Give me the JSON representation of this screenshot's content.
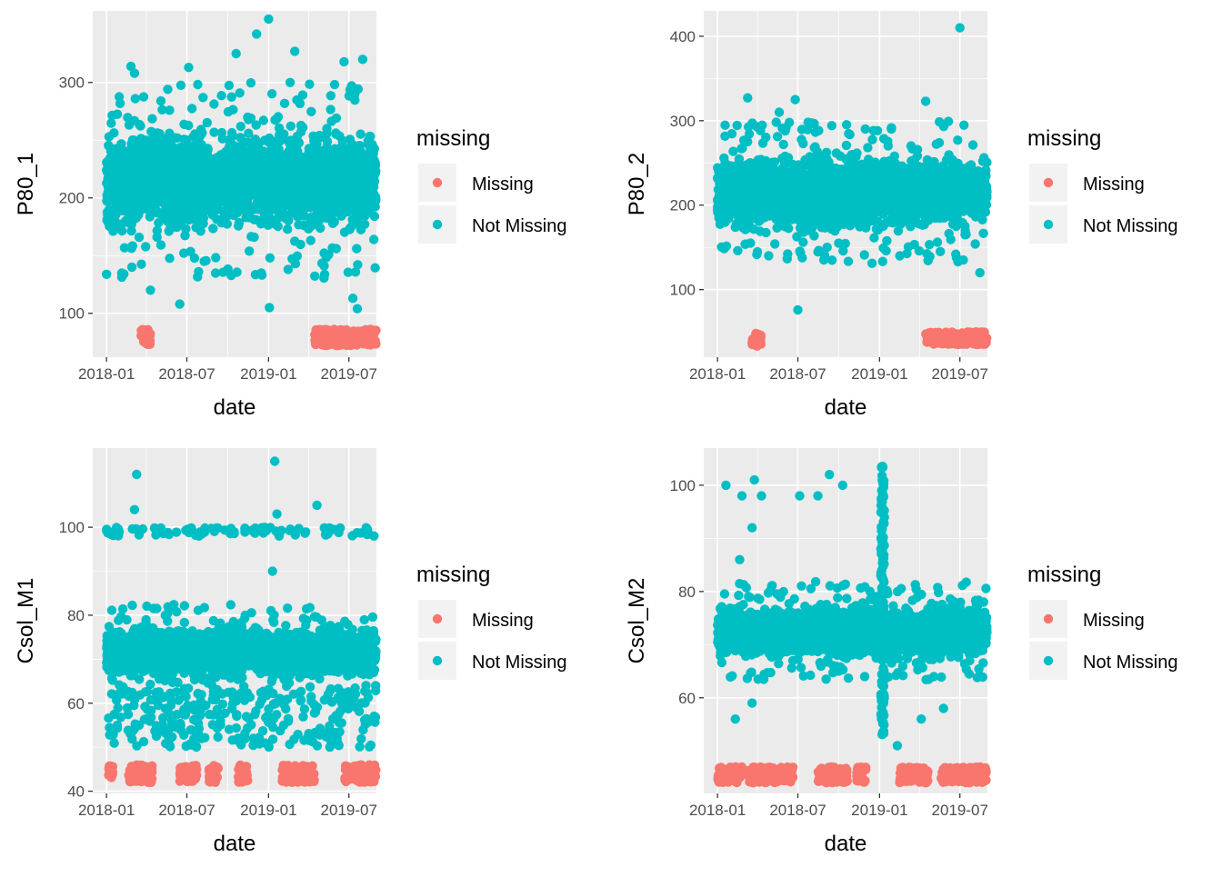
{
  "legend": {
    "title": "missing",
    "items": [
      {
        "label": "Missing",
        "color": "#F8766D"
      },
      {
        "label": "Not Missing",
        "color": "#00BFC4"
      }
    ]
  },
  "colors": {
    "panel_bg": "#EBEBEB",
    "grid_major": "#FFFFFF",
    "missing": "#F8766D",
    "not_missing": "#00BFC4"
  },
  "chart_data": [
    {
      "type": "scatter",
      "xlabel": "date",
      "ylabel": "P80_1",
      "x_tick_labels": [
        "2018-01",
        "2018-07",
        "2019-01",
        "2019-07"
      ],
      "y_tick_labels": [
        "100",
        "200",
        "300"
      ],
      "xlim": [
        "2017-12-01",
        "2019-09-01"
      ],
      "ylim": [
        62,
        362
      ],
      "y_ticks": [
        100,
        200,
        300
      ],
      "grid": true,
      "legend_position": "right",
      "series": [
        {
          "name": "Missing",
          "summary": "constant-like low values near 75–85, in early Mar–Apr 2018 and Apr–Aug 2019",
          "x_range": [
            "2018-03-20",
            "2018-04-10"
          ],
          "y_range": [
            72,
            86
          ],
          "x_range_2": [
            "2019-04-15",
            "2019-08-31"
          ],
          "y_range_2": [
            72,
            86
          ]
        },
        {
          "name": "Not Missing",
          "summary": "dense band ~160–270 across Jan 2018–Aug 2019, outliers 105–355",
          "x_range": [
            "2018-01-01",
            "2019-08-31"
          ],
          "y_core": [
            165,
            265
          ],
          "outliers": [
            {
              "x": "2018-02-25",
              "y": 314
            },
            {
              "x": "2018-03-05",
              "y": 308
            },
            {
              "x": "2018-04-10",
              "y": 120
            },
            {
              "x": "2018-06-15",
              "y": 108
            },
            {
              "x": "2018-07-05",
              "y": 313
            },
            {
              "x": "2018-10-20",
              "y": 325
            },
            {
              "x": "2018-12-05",
              "y": 342
            },
            {
              "x": "2019-01-01",
              "y": 355
            },
            {
              "x": "2019-01-03",
              "y": 105
            },
            {
              "x": "2019-03-01",
              "y": 327
            },
            {
              "x": "2019-06-20",
              "y": 318
            },
            {
              "x": "2019-08-01",
              "y": 320
            },
            {
              "x": "2019-07-10",
              "y": 113
            },
            {
              "x": "2019-07-20",
              "y": 104
            }
          ]
        }
      ]
    },
    {
      "type": "scatter",
      "xlabel": "date",
      "ylabel": "P80_2",
      "x_tick_labels": [
        "2018-01",
        "2018-07",
        "2019-01",
        "2019-07"
      ],
      "y_tick_labels": [
        "100",
        "200",
        "300",
        "400"
      ],
      "xlim": [
        "2017-12-01",
        "2019-09-01"
      ],
      "ylim": [
        20,
        430
      ],
      "y_ticks": [
        100,
        200,
        300,
        400
      ],
      "grid": true,
      "legend_position": "right",
      "series": [
        {
          "name": "Missing",
          "summary": "low values near 35–50, Mar–Apr 2018 and Apr–Aug 2019",
          "x_range": [
            "2018-03-20",
            "2018-04-10"
          ],
          "y_range": [
            33,
            50
          ],
          "x_range_2": [
            "2019-04-15",
            "2019-08-31"
          ],
          "y_range_2": [
            35,
            50
          ]
        },
        {
          "name": "Not Missing",
          "summary": "dense band ~165–265 across Jan 2018–Aug 2019, outliers 75–410",
          "x_range": [
            "2018-01-01",
            "2019-08-31"
          ],
          "y_core": [
            165,
            265
          ],
          "outliers": [
            {
              "x": "2018-03-10",
              "y": 327
            },
            {
              "x": "2018-05-20",
              "y": 310
            },
            {
              "x": "2018-06-25",
              "y": 325
            },
            {
              "x": "2018-07-01",
              "y": 76
            },
            {
              "x": "2019-04-15",
              "y": 323
            },
            {
              "x": "2019-07-01",
              "y": 410
            },
            {
              "x": "2019-08-15",
              "y": 120
            }
          ]
        }
      ]
    },
    {
      "type": "scatter",
      "xlabel": "date",
      "ylabel": "Csol_M1",
      "x_tick_labels": [
        "2018-01",
        "2018-07",
        "2019-01",
        "2019-07"
      ],
      "y_tick_labels": [
        "40",
        "60",
        "80",
        "100"
      ],
      "xlim": [
        "2017-12-01",
        "2019-09-01"
      ],
      "ylim": [
        39.5,
        118
      ],
      "y_ticks": [
        40,
        60,
        80,
        100
      ],
      "grid": true,
      "legend_position": "right",
      "series": [
        {
          "name": "Missing",
          "summary": "values near 42–46 in several clusters",
          "clusters": [
            {
              "x_range": [
                "2018-01-05",
                "2018-01-15"
              ],
              "y_range": [
                43,
                46
              ]
            },
            {
              "x_range": [
                "2018-02-20",
                "2018-04-15"
              ],
              "y_range": [
                42,
                46
              ]
            },
            {
              "x_range": [
                "2018-06-15",
                "2018-07-25"
              ],
              "y_range": [
                42,
                46
              ]
            },
            {
              "x_range": [
                "2018-08-20",
                "2018-09-10"
              ],
              "y_range": [
                42,
                46
              ]
            },
            {
              "x_range": [
                "2018-10-25",
                "2018-11-15"
              ],
              "y_range": [
                42,
                46
              ]
            },
            {
              "x_range": [
                "2019-02-01",
                "2019-04-15"
              ],
              "y_range": [
                42,
                46
              ]
            },
            {
              "x_range": [
                "2019-06-20",
                "2019-08-31"
              ],
              "y_range": [
                42,
                46
              ]
            }
          ]
        },
        {
          "name": "Not Missing",
          "summary": "core ~65–78, lower scatter 50–62, upper cluster ~98–100, outliers to 115",
          "x_range": [
            "2018-01-01",
            "2019-08-31"
          ],
          "y_core": [
            65,
            78
          ],
          "upper_cluster": [
            98,
            100
          ],
          "outliers": [
            {
              "x": "2018-03-10",
              "y": 112
            },
            {
              "x": "2018-03-05",
              "y": 104
            },
            {
              "x": "2019-01-15",
              "y": 115
            },
            {
              "x": "2019-01-20",
              "y": 103
            },
            {
              "x": "2019-04-20",
              "y": 105
            },
            {
              "x": "2019-01-10",
              "y": 90
            }
          ]
        }
      ]
    },
    {
      "type": "scatter",
      "xlabel": "date",
      "ylabel": "Csol_M2",
      "x_tick_labels": [
        "2018-01",
        "2018-07",
        "2019-01",
        "2019-07"
      ],
      "y_tick_labels": [
        "60",
        "80",
        "100"
      ],
      "xlim": [
        "2017-12-01",
        "2019-09-01"
      ],
      "ylim": [
        42,
        107
      ],
      "y_ticks": [
        60,
        80,
        100
      ],
      "grid": true,
      "legend_position": "right",
      "series": [
        {
          "name": "Missing",
          "summary": "values near 44–47 in several clusters",
          "clusters": [
            {
              "x_range": [
                "2018-01-01",
                "2018-02-25"
              ],
              "y_range": [
                44,
                47
              ]
            },
            {
              "x_range": [
                "2018-03-10",
                "2018-06-20"
              ],
              "y_range": [
                44,
                47
              ]
            },
            {
              "x_range": [
                "2018-08-15",
                "2018-10-20"
              ],
              "y_range": [
                44,
                47
              ]
            },
            {
              "x_range": [
                "2018-11-10",
                "2018-12-01"
              ],
              "y_range": [
                44,
                47
              ]
            },
            {
              "x_range": [
                "2019-02-15",
                "2019-04-20"
              ],
              "y_range": [
                44,
                47
              ]
            },
            {
              "x_range": [
                "2019-05-20",
                "2019-08-31"
              ],
              "y_range": [
                44,
                47
              ]
            }
          ]
        },
        {
          "name": "Not Missing",
          "summary": "core ~68–78 with a spike around Jan 2019 ranging 53–104",
          "x_range": [
            "2018-01-01",
            "2019-08-31"
          ],
          "y_core": [
            67,
            78
          ],
          "spike": {
            "x": "2019-01-08",
            "y_range": [
              53,
              104
            ]
          },
          "outliers": [
            {
              "x": "2018-01-20",
              "y": 100
            },
            {
              "x": "2018-02-25",
              "y": 98
            },
            {
              "x": "2018-03-25",
              "y": 101
            },
            {
              "x": "2018-04-10",
              "y": 98
            },
            {
              "x": "2018-03-20",
              "y": 92
            },
            {
              "x": "2018-02-20",
              "y": 86
            },
            {
              "x": "2018-07-05",
              "y": 98
            },
            {
              "x": "2018-08-15",
              "y": 98
            },
            {
              "x": "2018-09-10",
              "y": 102
            },
            {
              "x": "2018-10-10",
              "y": 100
            },
            {
              "x": "2018-02-10",
              "y": 56
            },
            {
              "x": "2018-03-20",
              "y": 59
            },
            {
              "x": "2019-02-10",
              "y": 51
            },
            {
              "x": "2019-04-05",
              "y": 56
            },
            {
              "x": "2019-05-25",
              "y": 58
            }
          ]
        }
      ]
    }
  ]
}
